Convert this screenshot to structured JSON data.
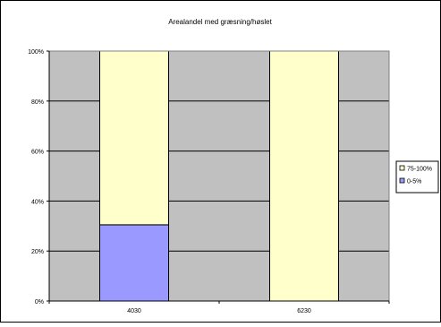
{
  "chart_data": {
    "type": "bar",
    "stacked": true,
    "percent_stacked": true,
    "title": "Arealandel med græsning/høslet",
    "categories": [
      "4030",
      "6230"
    ],
    "series": [
      {
        "name": "0-5%",
        "values": [
          30.5,
          0
        ],
        "color": "#9999ff"
      },
      {
        "name": "75-100%",
        "values": [
          69.5,
          100
        ],
        "color": "#ffffcc"
      }
    ],
    "ylim": [
      0,
      100
    ],
    "yticks": [
      "0%",
      "20%",
      "40%",
      "60%",
      "80%",
      "100%"
    ],
    "ytick_values": [
      0,
      20,
      40,
      60,
      80,
      100
    ],
    "grid": true,
    "legend_position": "right",
    "legend_order": [
      "75-100%",
      "0-5%"
    ],
    "plot_background": "#c0c0c0"
  }
}
